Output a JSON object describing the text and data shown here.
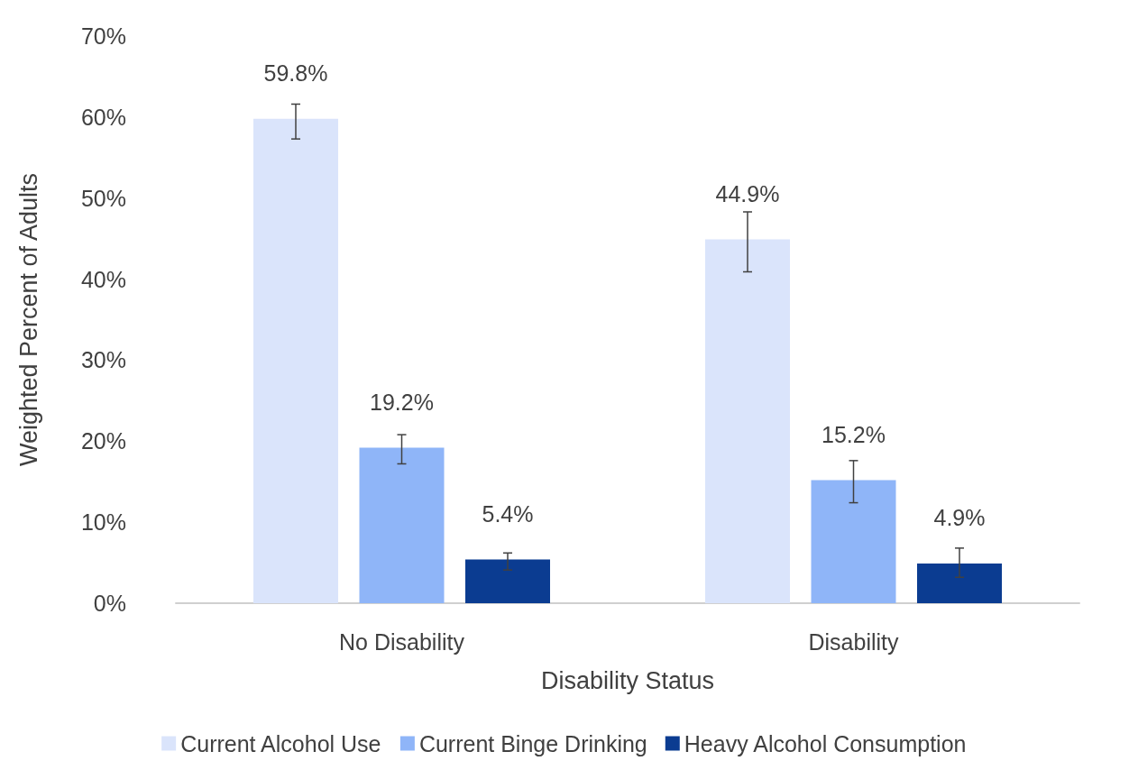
{
  "chart_data": {
    "type": "bar",
    "xlabel": "Disability Status",
    "ylabel": "Weighted Percent of Adults",
    "categories": [
      "No Disability",
      "Disability"
    ],
    "series": [
      {
        "name": "Current Alcohol Use",
        "color": "#dae4fb",
        "values": [
          59.8,
          44.9
        ],
        "value_labels": [
          "59.8%",
          "44.9%"
        ],
        "errors": [
          [
            57.3,
            61.6
          ],
          [
            40.9,
            48.3
          ]
        ]
      },
      {
        "name": "Current Binge Drinking",
        "color": "#8fb5f8",
        "values": [
          19.2,
          15.2
        ],
        "value_labels": [
          "19.2%",
          "15.2%"
        ],
        "errors": [
          [
            17.2,
            20.8
          ],
          [
            12.4,
            17.6
          ]
        ]
      },
      {
        "name": "Heavy Alcohol Consumption",
        "color": "#0b3c91",
        "values": [
          5.4,
          4.9
        ],
        "value_labels": [
          "5.4%",
          "4.9%"
        ],
        "errors": [
          [
            4.1,
            6.2
          ],
          [
            3.2,
            6.8
          ]
        ]
      }
    ],
    "ylim": [
      0,
      70
    ],
    "yticks": [
      {
        "value": 0,
        "label": "0%"
      },
      {
        "value": 10,
        "label": "10%"
      },
      {
        "value": 20,
        "label": "20%"
      },
      {
        "value": 30,
        "label": "30%"
      },
      {
        "value": 40,
        "label": "40%"
      },
      {
        "value": 50,
        "label": "50%"
      },
      {
        "value": 60,
        "label": "60%"
      },
      {
        "value": 70,
        "label": "70%"
      }
    ],
    "grid": false,
    "legend": "bottom"
  }
}
